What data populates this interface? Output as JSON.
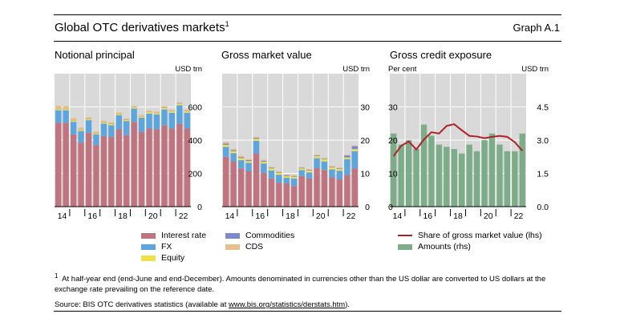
{
  "header": {
    "title": "Global OTC derivatives markets",
    "title_sup": "1",
    "graph_id": "Graph A.1"
  },
  "colors": {
    "interest_rate": "#c0747f",
    "fx": "#5da5dd",
    "equity": "#f0e14a",
    "commodities": "#7b88c9",
    "cds": "#e6c08c",
    "share_line": "#b02127",
    "amounts": "#7cad88",
    "panel_bg": "#d9d9d9",
    "grid": "#ffffff"
  },
  "legend": {
    "interest_rate": "Interest rate",
    "fx": "FX",
    "equity": "Equity",
    "commodities": "Commodities",
    "cds": "CDS",
    "share": "Share of gross market value (lhs)",
    "amounts": "Amounts (rhs)"
  },
  "footnote": {
    "marker": "1",
    "text": "At half-year end (end-June and end-December). Amounts denominated in currencies other than the US dollar are converted to US dollars at the exchange rate prevailing on the reference date."
  },
  "source": {
    "prefix": "Source: BIS OTC derivatives statistics (available at ",
    "link": "www.bis.org/statistics/derstats.htm",
    "suffix": ")."
  },
  "chart_data": [
    {
      "type": "bar",
      "stacked": true,
      "title": "Notional principal",
      "unit_label": "USD trn",
      "y_axis_side": "right",
      "yticks": [
        0,
        200,
        400,
        600
      ],
      "ylim": [
        0,
        800
      ],
      "x_tick_labels": [
        "14",
        "16",
        "18",
        "20",
        "22"
      ],
      "categories": [
        "H1 2014",
        "H2 2014",
        "H1 2015",
        "H2 2015",
        "H1 2016",
        "H2 2016",
        "H1 2017",
        "H2 2017",
        "H1 2018",
        "H2 2018",
        "H1 2019",
        "H2 2019",
        "H1 2020",
        "H2 2020",
        "H1 2021",
        "H2 2021",
        "H1 2022",
        "H2 2022"
      ],
      "series": [
        {
          "name": "Interest rate",
          "values": [
            505,
            505,
            435,
            385,
            445,
            370,
            425,
            420,
            465,
            430,
            510,
            450,
            470,
            465,
            490,
            470,
            500,
            470
          ]
        },
        {
          "name": "FX",
          "values": [
            75,
            75,
            75,
            70,
            75,
            65,
            75,
            70,
            85,
            85,
            80,
            85,
            90,
            90,
            95,
            95,
            110,
            95
          ]
        },
        {
          "name": "Equity",
          "values": [
            7,
            7,
            7,
            7,
            6,
            6,
            7,
            7,
            7,
            6,
            7,
            7,
            8,
            8,
            8,
            8,
            8,
            8
          ]
        },
        {
          "name": "Commodities",
          "values": [
            2,
            2,
            2,
            2,
            2,
            2,
            2,
            2,
            2,
            2,
            2,
            2,
            2,
            2,
            2,
            2,
            2,
            2
          ]
        },
        {
          "name": "CDS",
          "values": [
            19,
            16,
            14,
            12,
            11,
            10,
            9,
            9,
            8,
            8,
            8,
            8,
            9,
            8,
            9,
            8,
            9,
            9
          ]
        }
      ]
    },
    {
      "type": "bar",
      "stacked": true,
      "title": "Gross market value",
      "unit_label": "USD trn",
      "y_axis_side": "right",
      "yticks": [
        0,
        10,
        20,
        30
      ],
      "ylim": [
        0,
        40
      ],
      "x_tick_labels": [
        "14",
        "16",
        "18",
        "20",
        "22"
      ],
      "categories": [
        "H1 2014",
        "H2 2014",
        "H1 2015",
        "H2 2015",
        "H1 2016",
        "H2 2016",
        "H1 2017",
        "H2 2017",
        "H1 2018",
        "H2 2018",
        "H1 2019",
        "H2 2019",
        "H1 2020",
        "H2 2020",
        "H1 2021",
        "H2 2021",
        "H1 2022",
        "H2 2022"
      ],
      "series": [
        {
          "name": "Interest rate",
          "values": [
            15.0,
            13.6,
            11.5,
            10.6,
            16.0,
            10.2,
            8.5,
            7.2,
            7.0,
            6.2,
            9.2,
            8.5,
            11.6,
            11.0,
            8.8,
            8.2,
            9.5,
            11.5
          ]
        },
        {
          "name": "FX",
          "values": [
            3.0,
            2.5,
            2.5,
            2.6,
            3.8,
            2.8,
            2.4,
            2.4,
            1.7,
            2.3,
            1.8,
            1.8,
            3.0,
            2.6,
            2.4,
            2.6,
            4.8,
            5.2
          ]
        },
        {
          "name": "Equity",
          "values": [
            0.6,
            0.6,
            0.6,
            0.5,
            0.6,
            0.5,
            0.6,
            0.6,
            0.5,
            0.5,
            0.5,
            0.6,
            0.6,
            0.7,
            0.6,
            0.6,
            0.5,
            0.6
          ]
        },
        {
          "name": "Commodities",
          "values": [
            0.4,
            0.3,
            0.3,
            0.3,
            0.3,
            0.3,
            0.2,
            0.2,
            0.2,
            0.2,
            0.2,
            0.2,
            0.2,
            0.2,
            0.2,
            0.2,
            0.6,
            0.9
          ]
        },
        {
          "name": "CDS",
          "values": [
            0.5,
            0.4,
            0.4,
            0.4,
            0.3,
            0.3,
            0.3,
            0.3,
            0.3,
            0.3,
            0.2,
            0.2,
            0.2,
            0.2,
            0.2,
            0.2,
            0.2,
            0.2
          ]
        }
      ]
    },
    {
      "type": "bar+line",
      "title": "Gross credit exposure",
      "left_unit_label": "Per cent",
      "right_unit_label": "USD trn",
      "yticks_left": [
        0,
        10,
        20,
        30
      ],
      "ylim_left": [
        0,
        40
      ],
      "yticks_right_labels": [
        "0.0",
        "1.5",
        "3.0",
        "4.5"
      ],
      "yticks_right": [
        0,
        1.5,
        3.0,
        4.5
      ],
      "ylim_right": [
        0,
        6
      ],
      "x_tick_labels": [
        "14",
        "16",
        "18",
        "20",
        "22"
      ],
      "categories": [
        "H1 2014",
        "H2 2014",
        "H1 2015",
        "H2 2015",
        "H1 2016",
        "H2 2016",
        "H1 2017",
        "H2 2017",
        "H1 2018",
        "H2 2018",
        "H1 2019",
        "H2 2019",
        "H1 2020",
        "H2 2020",
        "H1 2021",
        "H2 2021",
        "H1 2022",
        "H2 2022"
      ],
      "series": [
        {
          "name": "Share of gross market value (lhs)",
          "kind": "line",
          "axis": "left",
          "values": [
            15.2,
            18.3,
            19.6,
            17.2,
            20.2,
            22.4,
            22.0,
            24.3,
            24.8,
            23.0,
            21.3,
            21.1,
            20.6,
            21.0,
            21.3,
            21.0,
            19.4,
            16.8
          ]
        },
        {
          "name": "Amounts (rhs)",
          "kind": "bar",
          "axis": "right",
          "values": [
            3.3,
            2.8,
            3.0,
            2.6,
            3.7,
            3.2,
            2.8,
            2.7,
            2.6,
            2.4,
            2.8,
            2.5,
            3.0,
            3.3,
            2.8,
            2.5,
            2.5,
            3.3
          ]
        }
      ]
    }
  ]
}
